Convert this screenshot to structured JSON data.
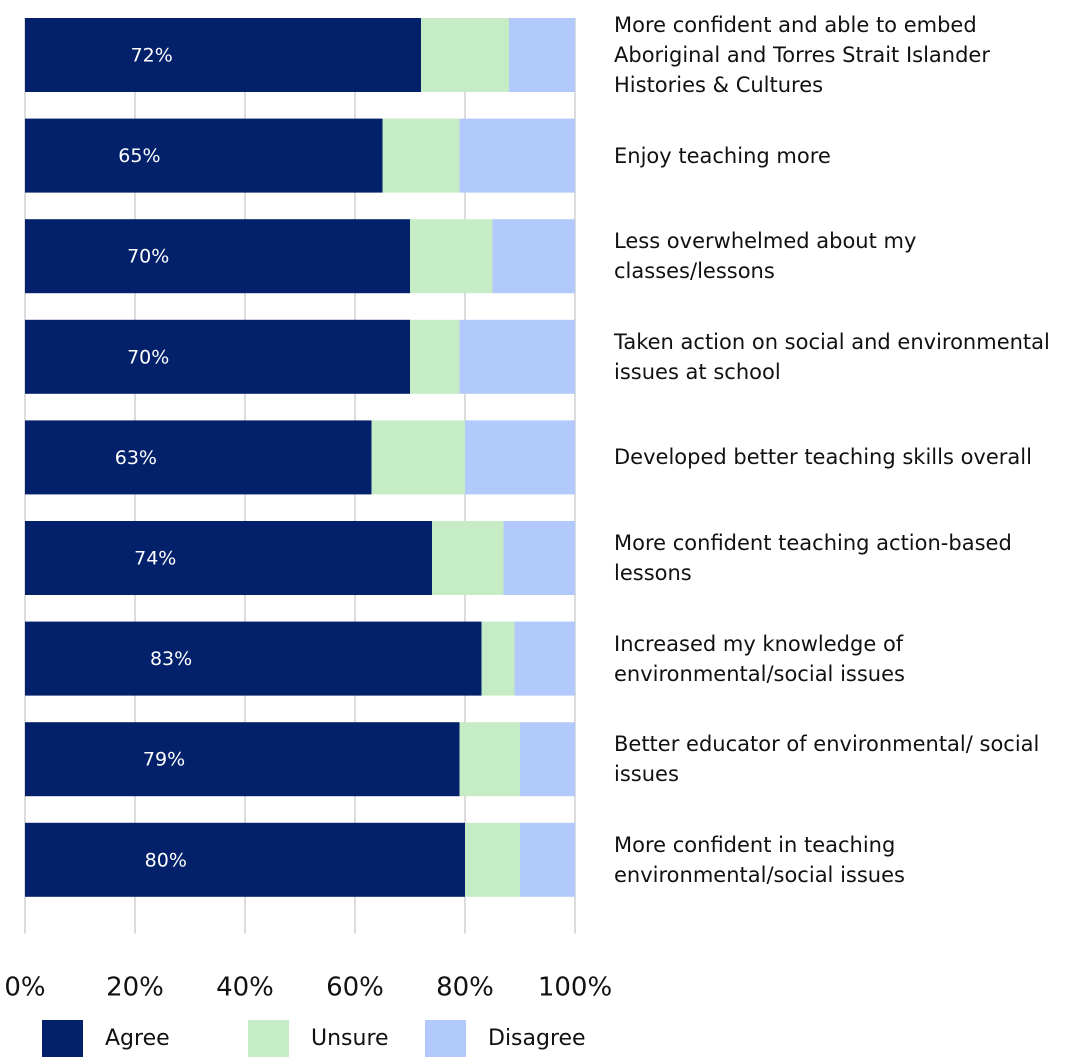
{
  "chart_data": {
    "type": "stacked-barh",
    "categories": [
      "More confident and able to embed Aboriginal and Torres Strait Islander Histories & Cultures",
      "Enjoy teaching more",
      "Less overwhelmed about my classes/lessons",
      "Taken action on social and environmental issues at school",
      "Developed better teaching skills overall",
      "More confident teaching action-based lessons",
      "Increased my knowledge of environmental/social issues",
      "Better educator of environmental/ social issues",
      "More confident in teaching environmental/social issues"
    ],
    "series": [
      {
        "name": "Agree",
        "color": "#03206b",
        "values": [
          72,
          65,
          70,
          70,
          63,
          74,
          83,
          79,
          80
        ],
        "value_labels": [
          "72%",
          "65%",
          "70%",
          "70%",
          "63%",
          "74%",
          "83%",
          "79%",
          "80%"
        ]
      },
      {
        "name": "Unsure",
        "color": "#c6ecc5",
        "values": [
          16,
          14,
          15,
          9,
          17,
          13,
          6,
          11,
          10
        ]
      },
      {
        "name": "Disagree",
        "color": "#b2c9fb",
        "values": [
          12,
          21,
          15,
          21,
          20,
          13,
          11,
          10,
          10
        ]
      }
    ],
    "xlim": [
      0,
      100
    ],
    "xticks": [
      {
        "value": 0,
        "label": "0%"
      },
      {
        "value": 20,
        "label": "20%"
      },
      {
        "value": 40,
        "label": "40%"
      },
      {
        "value": 60,
        "label": "60%"
      },
      {
        "value": 80,
        "label": "80%"
      },
      {
        "value": 100,
        "label": "100%"
      }
    ],
    "grid": true
  }
}
